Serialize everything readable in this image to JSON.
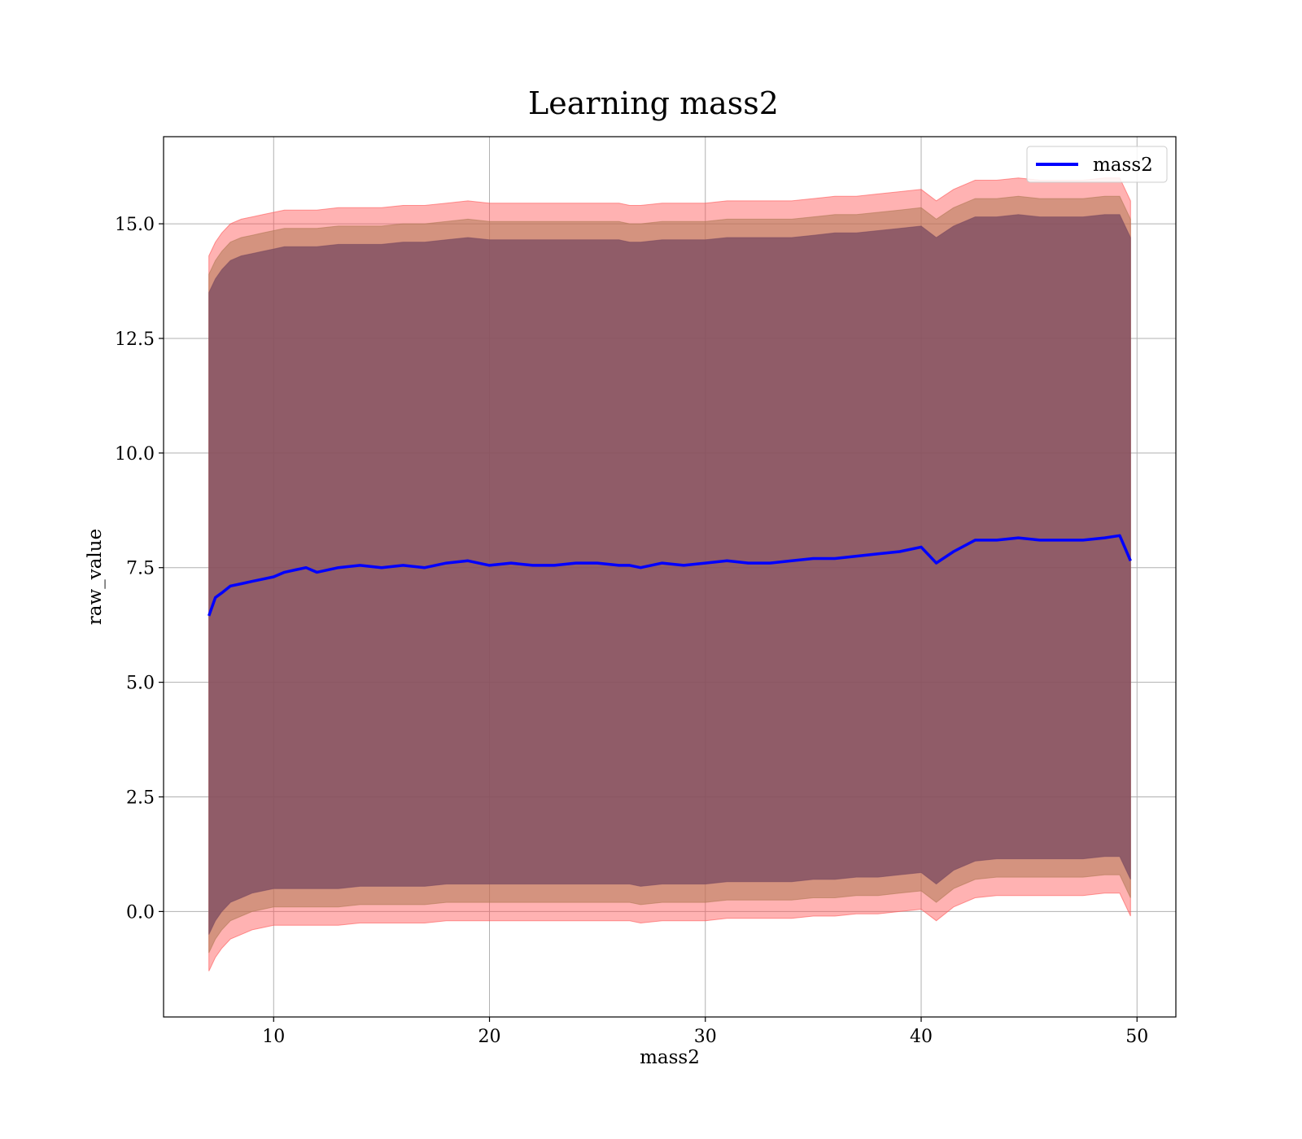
{
  "chart_data": {
    "type": "line",
    "title": "Learning mass2",
    "xlabel": "mass2",
    "ylabel": "raw_value",
    "xlim": [
      4.9,
      51.8
    ],
    "ylim": [
      -2.3,
      16.9
    ],
    "x_ticks": [
      10,
      20,
      30,
      40,
      50
    ],
    "y_ticks": [
      0.0,
      2.5,
      5.0,
      7.5,
      10.0,
      12.5,
      15.0
    ],
    "y_tick_labels": [
      "0.0",
      "2.5",
      "5.0",
      "7.5",
      "10.0",
      "12.5",
      "15.0"
    ],
    "grid": true,
    "legend_position": "top-right",
    "series": [
      {
        "name": "mass2",
        "color": "#0000ff",
        "x": [
          7.0,
          7.3,
          7.6,
          8.0,
          8.5,
          9.0,
          9.5,
          10.0,
          10.5,
          11.0,
          11.5,
          12.0,
          13.0,
          14.0,
          15.0,
          16.0,
          17.0,
          18.0,
          19.0,
          20.0,
          21.0,
          22.0,
          23.0,
          24.0,
          25.0,
          26.0,
          26.5,
          27.0,
          28.0,
          29.0,
          30.0,
          31.0,
          32.0,
          33.0,
          34.0,
          35.0,
          36.0,
          37.0,
          38.0,
          39.0,
          40.0,
          40.7,
          41.5,
          42.5,
          43.5,
          44.5,
          45.5,
          46.5,
          47.5,
          48.5,
          49.2,
          49.7
        ],
        "y": [
          6.45,
          6.85,
          6.95,
          7.1,
          7.15,
          7.2,
          7.25,
          7.3,
          7.4,
          7.45,
          7.5,
          7.4,
          7.5,
          7.55,
          7.5,
          7.55,
          7.5,
          7.6,
          7.65,
          7.55,
          7.6,
          7.55,
          7.55,
          7.6,
          7.6,
          7.55,
          7.55,
          7.5,
          7.6,
          7.55,
          7.6,
          7.65,
          7.6,
          7.6,
          7.65,
          7.7,
          7.7,
          7.75,
          7.8,
          7.85,
          7.95,
          7.6,
          7.85,
          8.1,
          8.1,
          8.15,
          8.1,
          8.1,
          8.1,
          8.15,
          8.2,
          7.65
        ],
        "bands": [
          {
            "color": "#ff5555",
            "opacity": 0.45,
            "lower": [
              -1.3,
              -1.0,
              -0.8,
              -0.6,
              -0.5,
              -0.4,
              -0.35,
              -0.3,
              -0.3,
              -0.3,
              -0.3,
              -0.3,
              -0.3,
              -0.25,
              -0.25,
              -0.25,
              -0.25,
              -0.2,
              -0.2,
              -0.2,
              -0.2,
              -0.2,
              -0.2,
              -0.2,
              -0.2,
              -0.2,
              -0.2,
              -0.25,
              -0.2,
              -0.2,
              -0.2,
              -0.15,
              -0.15,
              -0.15,
              -0.15,
              -0.1,
              -0.1,
              -0.05,
              -0.05,
              0.0,
              0.05,
              -0.2,
              0.1,
              0.3,
              0.35,
              0.35,
              0.35,
              0.35,
              0.35,
              0.4,
              0.4,
              -0.1
            ],
            "upper": [
              14.3,
              14.6,
              14.8,
              15.0,
              15.1,
              15.15,
              15.2,
              15.25,
              15.3,
              15.3,
              15.3,
              15.3,
              15.35,
              15.35,
              15.35,
              15.4,
              15.4,
              15.45,
              15.5,
              15.45,
              15.45,
              15.45,
              15.45,
              15.45,
              15.45,
              15.45,
              15.4,
              15.4,
              15.45,
              15.45,
              15.45,
              15.5,
              15.5,
              15.5,
              15.5,
              15.55,
              15.6,
              15.6,
              15.65,
              15.7,
              15.75,
              15.5,
              15.75,
              15.95,
              15.95,
              16.0,
              15.95,
              15.95,
              15.95,
              16.0,
              16.0,
              15.5
            ]
          },
          {
            "color": "#b07a55",
            "opacity": 0.55,
            "lower": [
              -0.9,
              -0.6,
              -0.4,
              -0.2,
              -0.1,
              0.0,
              0.05,
              0.1,
              0.1,
              0.1,
              0.1,
              0.1,
              0.1,
              0.15,
              0.15,
              0.15,
              0.15,
              0.2,
              0.2,
              0.2,
              0.2,
              0.2,
              0.2,
              0.2,
              0.2,
              0.2,
              0.2,
              0.15,
              0.2,
              0.2,
              0.2,
              0.25,
              0.25,
              0.25,
              0.25,
              0.3,
              0.3,
              0.35,
              0.35,
              0.4,
              0.45,
              0.2,
              0.5,
              0.7,
              0.75,
              0.75,
              0.75,
              0.75,
              0.75,
              0.8,
              0.8,
              0.3
            ],
            "upper": [
              13.9,
              14.2,
              14.4,
              14.6,
              14.7,
              14.75,
              14.8,
              14.85,
              14.9,
              14.9,
              14.9,
              14.9,
              14.95,
              14.95,
              14.95,
              15.0,
              15.0,
              15.05,
              15.1,
              15.05,
              15.05,
              15.05,
              15.05,
              15.05,
              15.05,
              15.05,
              15.0,
              15.0,
              15.05,
              15.05,
              15.05,
              15.1,
              15.1,
              15.1,
              15.1,
              15.15,
              15.2,
              15.2,
              15.25,
              15.3,
              15.35,
              15.1,
              15.35,
              15.55,
              15.55,
              15.6,
              15.55,
              15.55,
              15.55,
              15.6,
              15.6,
              15.1
            ]
          },
          {
            "color": "#7a4a60",
            "opacity": 0.75,
            "lower": [
              -0.5,
              -0.2,
              0.0,
              0.2,
              0.3,
              0.4,
              0.45,
              0.5,
              0.5,
              0.5,
              0.5,
              0.5,
              0.5,
              0.55,
              0.55,
              0.55,
              0.55,
              0.6,
              0.6,
              0.6,
              0.6,
              0.6,
              0.6,
              0.6,
              0.6,
              0.6,
              0.6,
              0.55,
              0.6,
              0.6,
              0.6,
              0.65,
              0.65,
              0.65,
              0.65,
              0.7,
              0.7,
              0.75,
              0.75,
              0.8,
              0.85,
              0.6,
              0.9,
              1.1,
              1.15,
              1.15,
              1.15,
              1.15,
              1.15,
              1.2,
              1.2,
              0.7
            ],
            "upper": [
              13.5,
              13.8,
              14.0,
              14.2,
              14.3,
              14.35,
              14.4,
              14.45,
              14.5,
              14.5,
              14.5,
              14.5,
              14.55,
              14.55,
              14.55,
              14.6,
              14.6,
              14.65,
              14.7,
              14.65,
              14.65,
              14.65,
              14.65,
              14.65,
              14.65,
              14.65,
              14.6,
              14.6,
              14.65,
              14.65,
              14.65,
              14.7,
              14.7,
              14.7,
              14.7,
              14.75,
              14.8,
              14.8,
              14.85,
              14.9,
              14.95,
              14.7,
              14.95,
              15.15,
              15.15,
              15.2,
              15.15,
              15.15,
              15.15,
              15.2,
              15.2,
              14.7
            ]
          }
        ]
      }
    ]
  }
}
